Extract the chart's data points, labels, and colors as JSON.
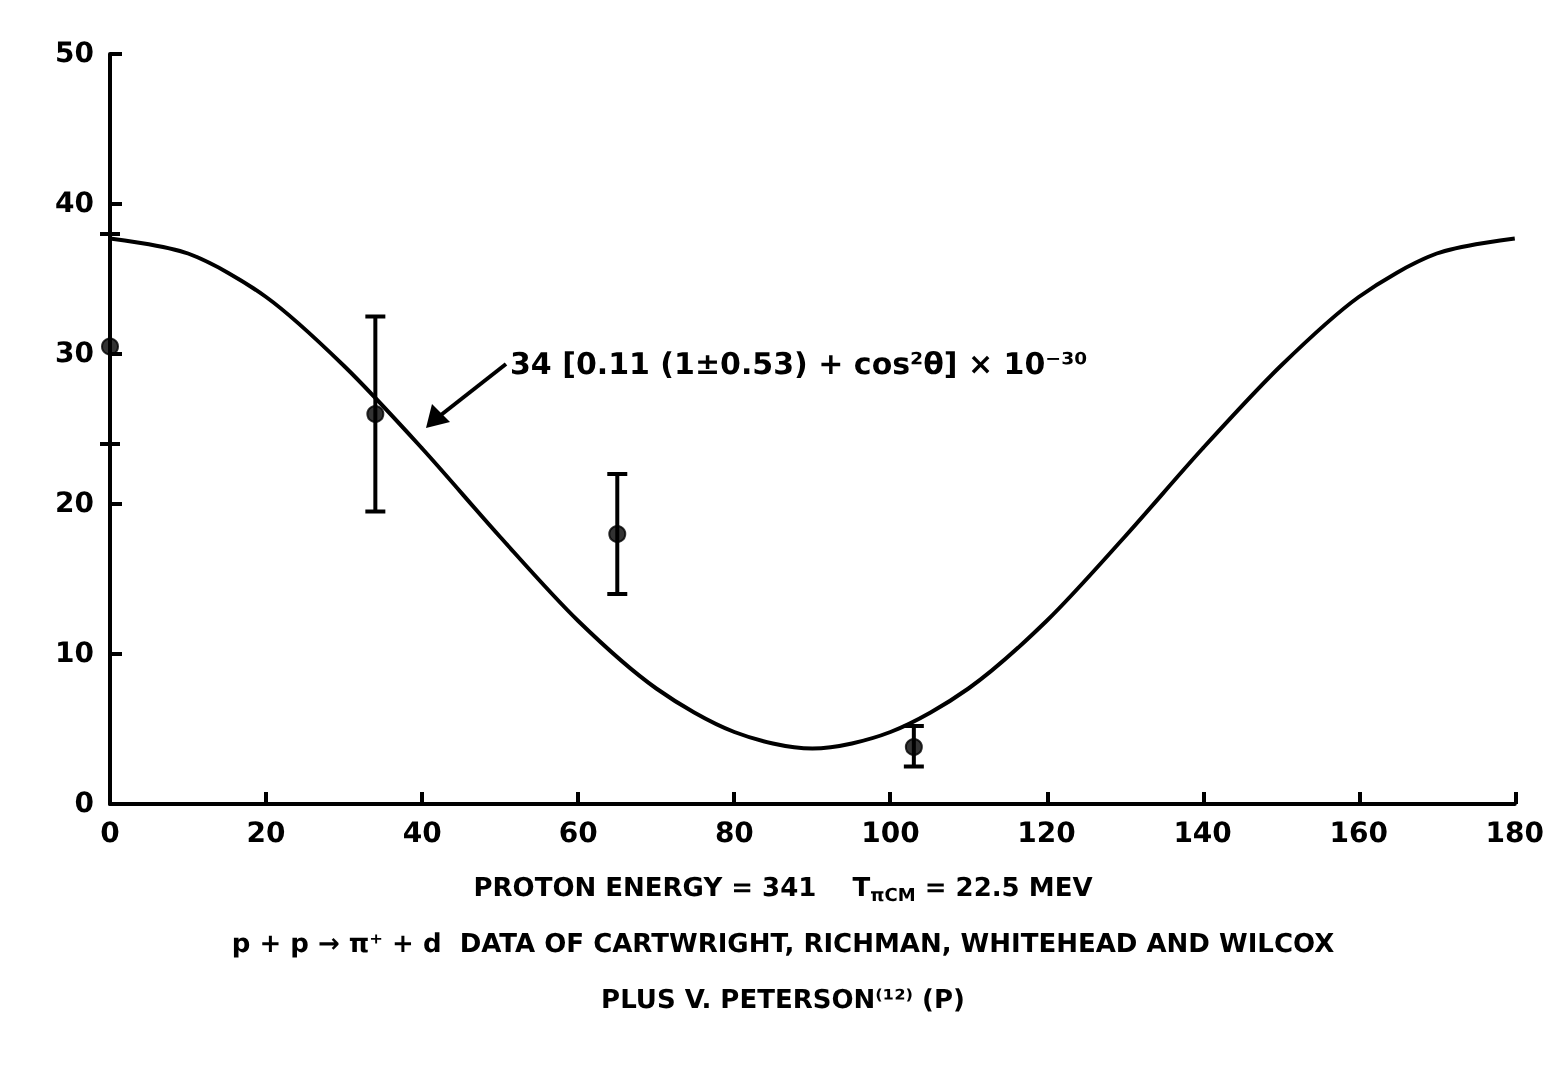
{
  "chart_data": {
    "type": "scatter",
    "xlim": [
      0,
      180
    ],
    "xticks": [
      0,
      20,
      40,
      60,
      80,
      100,
      120,
      140,
      160,
      180
    ],
    "ylim": [
      0,
      50
    ],
    "yticks": [
      0,
      10,
      20,
      30,
      40,
      50
    ],
    "grid": false,
    "series": [
      {
        "color": "#000000",
        "marker": "circle",
        "x": [
          0,
          65,
          103
        ],
        "values": [
          30.5,
          18,
          3.8
        ],
        "errors": [
          [
            24,
            38
          ],
          [
            14,
            22
          ],
          [
            2.5,
            5.2
          ]
        ]
      },
      {
        "color": "#000000",
        "marker": "circle",
        "x": [
          34
        ],
        "values": [
          26
        ],
        "errors": [
          [
            19.5,
            32.5
          ]
        ]
      },
      {
        "type": "line",
        "color": "#000000",
        "line_style": "solid",
        "x": [
          0,
          10,
          20,
          30,
          40,
          50,
          60,
          70,
          80,
          90,
          100,
          110,
          120,
          130,
          140,
          150,
          160,
          170,
          180
        ],
        "values": [
          37.7,
          36.7,
          33.8,
          29.2,
          23.7,
          17.8,
          12.2,
          7.7,
          4.8,
          3.7,
          4.8,
          7.7,
          12.2,
          17.8,
          23.7,
          29.2,
          33.8,
          36.7,
          37.7
        ]
      }
    ],
    "annotations": [
      "34 [0.11 (1±0.53) + cos²θ] × 10⁻³⁰",
      "PROTON ENERGY = 341    T$_{πCM}$ = 22.5 MEV",
      "p + p → π⁺ + d  DATA OF CARTWRIGHT, RICHMAN, WHITEHEAD AND WILCOX",
      "PLUS V. PETERSON⁽¹²⁾ (P)"
    ]
  }
}
